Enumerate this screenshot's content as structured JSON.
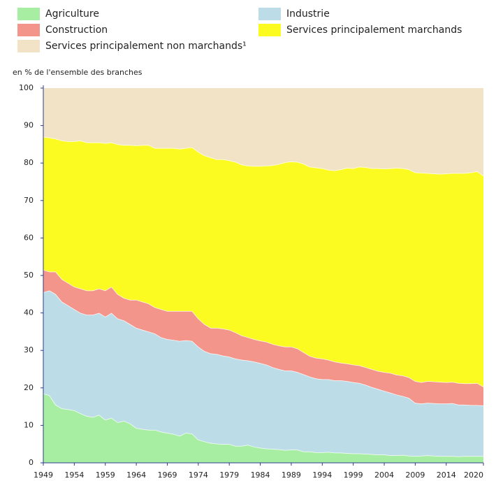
{
  "chart_data": {
    "type": "stacked_area",
    "y_axis_label": "en % de l'ensemble des branches",
    "x": [
      1949,
      1950,
      1951,
      1952,
      1953,
      1954,
      1955,
      1956,
      1957,
      1958,
      1959,
      1960,
      1961,
      1962,
      1963,
      1964,
      1965,
      1966,
      1967,
      1968,
      1969,
      1970,
      1971,
      1972,
      1973,
      1974,
      1975,
      1976,
      1977,
      1978,
      1979,
      1980,
      1981,
      1982,
      1983,
      1984,
      1985,
      1986,
      1987,
      1988,
      1989,
      1990,
      1991,
      1992,
      1993,
      1994,
      1995,
      1996,
      1997,
      1998,
      1999,
      2000,
      2001,
      2002,
      2003,
      2004,
      2005,
      2006,
      2007,
      2008,
      2009,
      2010,
      2011,
      2012,
      2013,
      2014,
      2015,
      2016,
      2017,
      2018,
      2019,
      2020
    ],
    "xlim": [
      1949,
      2020
    ],
    "xticks": [
      1949,
      1954,
      1959,
      1964,
      1969,
      1974,
      1979,
      1984,
      1989,
      1994,
      1999,
      2004,
      2009,
      2014,
      2020
    ],
    "ylim": [
      0,
      100
    ],
    "yticks": [
      0,
      10,
      20,
      30,
      40,
      50,
      60,
      70,
      80,
      90,
      100
    ],
    "series": [
      {
        "name": "Agriculture",
        "color": "#a8eea2",
        "values": [
          18.5,
          18,
          15.5,
          14.5,
          14.3,
          14,
          13.2,
          12.5,
          12.2,
          12.8,
          11.5,
          12,
          10.8,
          11.2,
          10.5,
          9.3,
          9,
          8.8,
          8.8,
          8.3,
          8,
          7.7,
          7.2,
          8,
          7.8,
          6.2,
          5.7,
          5.3,
          5.1,
          5,
          5,
          4.5,
          4.5,
          4.8,
          4.3,
          4,
          3.8,
          3.7,
          3.6,
          3.4,
          3.5,
          3.5,
          3,
          3,
          2.8,
          2.8,
          2.9,
          2.7,
          2.7,
          2.6,
          2.5,
          2.5,
          2.4,
          2.3,
          2.2,
          2.2,
          2,
          2,
          2.1,
          1.9,
          1.8,
          1.9,
          2,
          1.9,
          1.8,
          1.8,
          1.8,
          1.7,
          1.8,
          1.8,
          1.8,
          1.8
        ]
      },
      {
        "name": "Industrie",
        "color": "#bcdde7",
        "values": [
          27,
          28,
          29.5,
          28.5,
          27.7,
          27,
          26.8,
          27,
          27.3,
          27.2,
          27.5,
          28,
          27.7,
          26.8,
          26.5,
          26.7,
          26.5,
          26.2,
          25.7,
          25.2,
          25,
          25.1,
          25.3,
          24.7,
          24.7,
          24.8,
          24.1,
          23.9,
          23.9,
          23.6,
          23.3,
          23.3,
          23,
          22.5,
          22.7,
          22.6,
          22.4,
          21.8,
          21.4,
          21.2,
          21.1,
          20.7,
          20.6,
          20,
          19.7,
          19.5,
          19.4,
          19.3,
          19.3,
          19.2,
          19,
          18.8,
          18.4,
          17.9,
          17.5,
          17,
          16.7,
          16.2,
          15.7,
          15.4,
          14.2,
          13.9,
          14,
          14,
          14,
          14,
          14.1,
          13.8,
          13.7,
          13.6,
          13.6,
          13.5
        ]
      },
      {
        "name": "Construction",
        "color": "#f4958b",
        "values": [
          6,
          5,
          6,
          6,
          6,
          6,
          6.5,
          6.5,
          6.5,
          6.5,
          7,
          7,
          6.5,
          6,
          6.5,
          7.5,
          7.5,
          7.5,
          7,
          7.5,
          7.5,
          7.7,
          8,
          7.8,
          8,
          7.5,
          7.2,
          6.8,
          7,
          7.2,
          7.2,
          7,
          6.5,
          6.2,
          6,
          6,
          6.1,
          6.2,
          6.3,
          6.4,
          6.4,
          6.3,
          5.9,
          5.5,
          5.5,
          5.5,
          5.2,
          5,
          4.7,
          4.7,
          4.7,
          4.7,
          4.7,
          4.8,
          4.8,
          5,
          5.3,
          5.3,
          5.5,
          5.5,
          5.8,
          5.7,
          5.8,
          5.8,
          5.8,
          5.7,
          5.7,
          5.8,
          5.7,
          5.8,
          5.9,
          5
        ]
      },
      {
        "name": "Services principalement marchands",
        "color": "#fbfb22",
        "values": [
          35.5,
          35.8,
          35.5,
          37,
          37.8,
          38.8,
          39.5,
          39.5,
          39.5,
          39,
          39.3,
          38.5,
          40,
          40.8,
          41.3,
          41.2,
          41.8,
          42.3,
          42.5,
          43,
          43.5,
          43.5,
          43.3,
          43.5,
          43.7,
          44.5,
          45,
          45.5,
          45,
          45.2,
          45.2,
          45.5,
          45.6,
          45.8,
          46.2,
          46.6,
          47,
          47.7,
          48.4,
          49.2,
          49.4,
          49.8,
          50.3,
          50.5,
          50.8,
          50.8,
          50.7,
          51,
          51.6,
          52.2,
          52.4,
          53,
          53.4,
          53.6,
          54.1,
          54.3,
          54.6,
          55.2,
          55.3,
          55.5,
          55.7,
          55.9,
          55.5,
          55.5,
          55.5,
          55.7,
          55.7,
          56,
          56.1,
          56.3,
          56.5,
          56.3
        ]
      },
      {
        "name": "Services principalement non marchands¹",
        "color": "#f3e3c6",
        "values": [
          13,
          13.2,
          13.5,
          14,
          14.2,
          14.2,
          14,
          14.5,
          14.5,
          14.5,
          14.7,
          14.5,
          15,
          15.2,
          15.2,
          15.3,
          15.2,
          15.2,
          16,
          16,
          16,
          16,
          16.2,
          16,
          15.8,
          17,
          18,
          18.5,
          19,
          19,
          19.3,
          19.7,
          20.4,
          20.7,
          20.8,
          20.8,
          20.7,
          20.6,
          20.3,
          19.8,
          19.6,
          19.7,
          20.2,
          21,
          21.2,
          21.4,
          21.8,
          22,
          21.7,
          21.3,
          21.4,
          21,
          21.1,
          21.4,
          21.4,
          21.5,
          21.4,
          21.3,
          21.4,
          21.7,
          22.5,
          22.6,
          22.7,
          22.8,
          22.9,
          22.8,
          22.7,
          22.7,
          22.7,
          22.5,
          22.2,
          23.4
        ]
      }
    ]
  }
}
